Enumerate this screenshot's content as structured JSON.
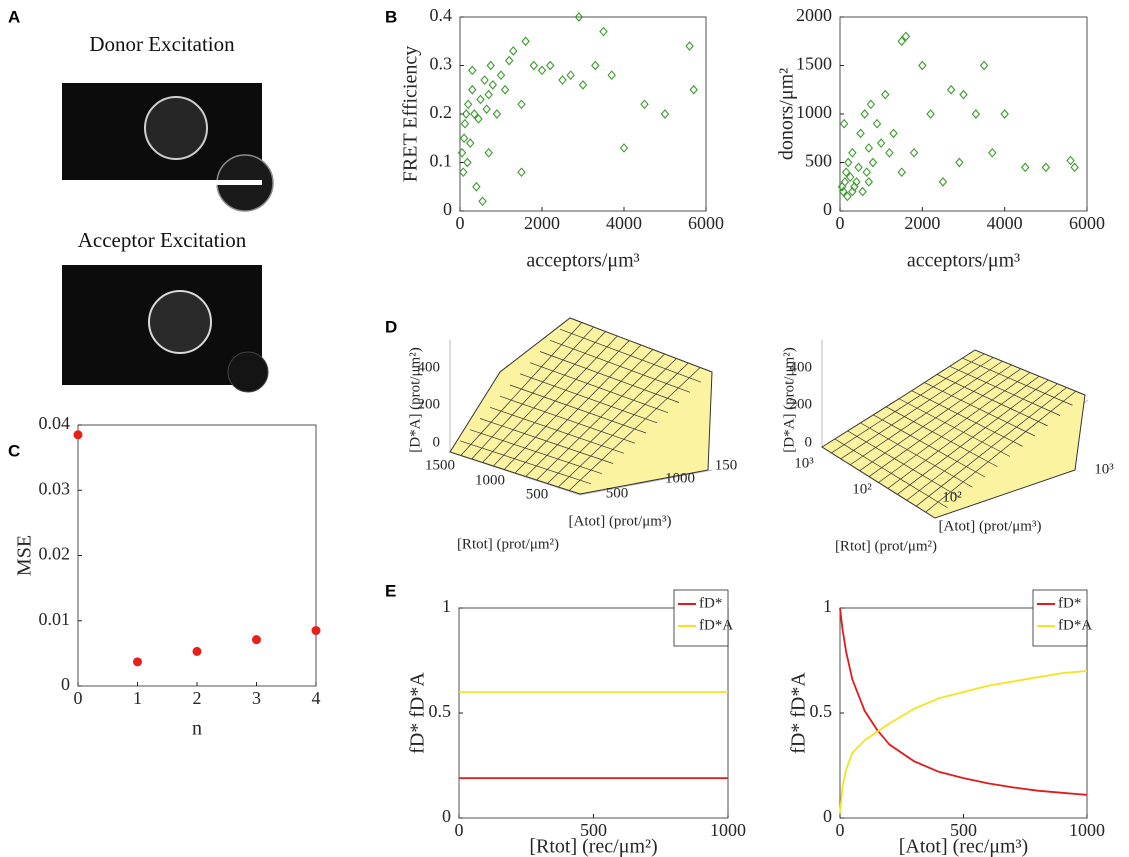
{
  "panel_labels": [
    "A",
    "B",
    "C",
    "D",
    "E"
  ],
  "images": {
    "donor_title": "Donor Excitation",
    "acceptor_title": "Acceptor Excitation"
  },
  "surface_plots": [
    {
      "z_label": "[D*A] (prot/μm²)",
      "r_label": "[Rtot] (prot/μm²)",
      "a_label": "[Atot] (prot/μm³)",
      "z_ticks": [
        "0",
        "200",
        "400"
      ],
      "r_ticks": [
        "1500",
        "1000",
        "500"
      ],
      "a_ticks": [
        "500",
        "1000",
        "150"
      ]
    },
    {
      "z_label": "[D*A] (prot/μm²)",
      "r_label": "[Rtot] (prot/μm²)",
      "a_label": "[Atot] (prot/μm³)",
      "z_ticks": [
        "0",
        "200",
        "400"
      ],
      "r_ticks": [
        "10³",
        "10²"
      ],
      "a_ticks": [
        "10²",
        "10³"
      ]
    }
  ],
  "chart_data": [
    {
      "type": "scatter",
      "x_label": "acceptors/μm³",
      "y_label": "FRET Efficiency",
      "marker": "diamond",
      "color": "#3a9a2a",
      "x": [
        50,
        80,
        100,
        120,
        150,
        180,
        200,
        250,
        300,
        350,
        400,
        450,
        500,
        550,
        600,
        650,
        700,
        750,
        800,
        900,
        1000,
        1100,
        1200,
        1300,
        1500,
        1600,
        1800,
        2000,
        2200,
        2500,
        2700,
        2900,
        3000,
        3300,
        3500,
        3700,
        4000,
        4500,
        5000,
        5600,
        5700,
        700,
        300,
        1500
      ],
      "values": [
        0.12,
        0.08,
        0.15,
        0.18,
        0.2,
        0.1,
        0.22,
        0.14,
        0.25,
        0.2,
        0.05,
        0.19,
        0.23,
        0.02,
        0.27,
        0.21,
        0.24,
        0.3,
        0.26,
        0.2,
        0.28,
        0.25,
        0.31,
        0.33,
        0.08,
        0.35,
        0.3,
        0.29,
        0.3,
        0.27,
        0.28,
        0.4,
        0.26,
        0.3,
        0.37,
        0.28,
        0.13,
        0.22,
        0.2,
        0.34,
        0.25,
        0.12,
        0.29,
        0.22
      ],
      "xlim": [
        0,
        6000
      ],
      "ylim": [
        0,
        0.4
      ],
      "xticks": [
        0,
        2000,
        4000,
        6000
      ],
      "yticks": [
        0,
        0.1,
        0.2,
        0.3,
        0.4
      ]
    },
    {
      "type": "scatter",
      "x_label": "acceptors/μm³",
      "y_label": "donors/μm²",
      "marker": "diamond",
      "color": "#3a9a2a",
      "x": [
        50,
        80,
        100,
        120,
        150,
        180,
        200,
        250,
        300,
        350,
        400,
        450,
        500,
        550,
        600,
        650,
        700,
        750,
        800,
        900,
        1000,
        1100,
        1200,
        1300,
        1500,
        1600,
        1800,
        2000,
        2200,
        2500,
        2700,
        2900,
        3000,
        3300,
        3500,
        3700,
        4000,
        4500,
        5000,
        5600,
        5700,
        700,
        300,
        1500
      ],
      "values": [
        250,
        200,
        900,
        300,
        400,
        150,
        500,
        350,
        600,
        250,
        300,
        450,
        800,
        200,
        1000,
        400,
        650,
        1100,
        500,
        900,
        700,
        1200,
        600,
        800,
        1750,
        1800,
        600,
        1500,
        1000,
        300,
        1250,
        500,
        1200,
        1000,
        1500,
        600,
        1000,
        450,
        450,
        520,
        450,
        300,
        200,
        400
      ],
      "xlim": [
        0,
        6000
      ],
      "ylim": [
        0,
        2000
      ],
      "xticks": [
        0,
        2000,
        4000,
        6000
      ],
      "yticks": [
        0,
        500,
        1000,
        1500,
        2000
      ]
    },
    {
      "type": "scatter",
      "x_label": "n",
      "y_label": "MSE",
      "marker": "circle",
      "color": "#e8201a",
      "x": [
        0,
        1,
        2,
        3,
        4
      ],
      "values": [
        0.0385,
        0.0037,
        0.0053,
        0.0071,
        0.0085
      ],
      "xlim": [
        0,
        4
      ],
      "ylim": [
        0,
        0.04
      ],
      "xticks": [
        0,
        1,
        2,
        3,
        4
      ],
      "yticks": [
        0,
        0.01,
        0.02,
        0.03,
        0.04
      ]
    },
    {
      "type": "line",
      "x_label": "[Rtot] (rec/μm²)",
      "y_label": "fD*  fD*A",
      "legend": "upper right",
      "x": [
        0,
        1000
      ],
      "series": [
        {
          "name": "fD*",
          "color": "#e31a1c",
          "values": [
            0.19,
            0.19
          ]
        },
        {
          "name": "fD*A",
          "color": "#f2e41e",
          "values": [
            0.6,
            0.6
          ]
        }
      ],
      "xlim": [
        0,
        1000
      ],
      "ylim": [
        0,
        1
      ],
      "xticks": [
        0,
        500,
        1000
      ],
      "yticks": [
        0,
        0.5,
        1
      ]
    },
    {
      "type": "line",
      "x_label": "[Atot] (rec/μm³)",
      "y_label": "fD*  fD*A",
      "legend": "upper right",
      "x": [
        0,
        10,
        25,
        50,
        100,
        150,
        200,
        300,
        400,
        500,
        600,
        700,
        800,
        900,
        1000
      ],
      "series": [
        {
          "name": "fD*",
          "color": "#e31a1c",
          "values": [
            1,
            0.9,
            0.79,
            0.66,
            0.51,
            0.42,
            0.35,
            0.27,
            0.22,
            0.19,
            0.165,
            0.146,
            0.13,
            0.12,
            0.11
          ]
        },
        {
          "name": "fD*A",
          "color": "#f2e41e",
          "values": [
            0.02,
            0.15,
            0.23,
            0.31,
            0.37,
            0.41,
            0.45,
            0.52,
            0.57,
            0.6,
            0.63,
            0.65,
            0.67,
            0.69,
            0.7
          ]
        }
      ],
      "xlim": [
        0,
        1000
      ],
      "ylim": [
        0,
        1
      ],
      "xticks": [
        0,
        500,
        1000
      ],
      "yticks": [
        0,
        0.5,
        1
      ]
    }
  ]
}
